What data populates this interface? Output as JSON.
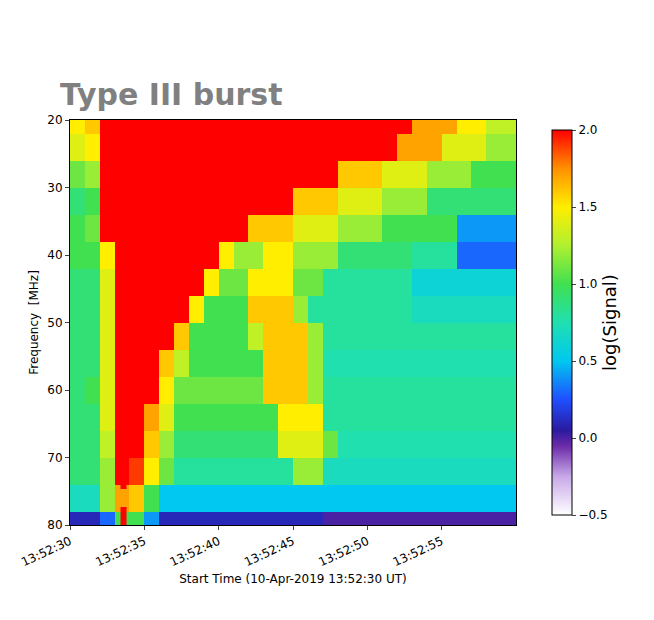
{
  "chart_data": {
    "type": "heatmap",
    "title": "Type III burst",
    "x_label": "Start Time (10-Apr-2019 13:52:30 UT)",
    "y_label": "Frequency  [MHz]",
    "x": [
      "13:52:30.5",
      "13:52:31.5",
      "13:52:32.5",
      "13:52:33.5",
      "13:52:34.5",
      "13:52:35.5",
      "13:52:36.5",
      "13:52:37.5",
      "13:52:38.5",
      "13:52:39.5",
      "13:52:40.5",
      "13:52:41.5",
      "13:52:42.5",
      "13:52:43.5",
      "13:52:44.5",
      "13:52:45.5",
      "13:52:46.5",
      "13:52:47.5",
      "13:52:48.5",
      "13:52:49.5",
      "13:52:50.5",
      "13:52:51.5",
      "13:52:52.5",
      "13:52:53.5",
      "13:52:54.5",
      "13:52:55.5",
      "13:52:56.5",
      "13:52:57.5",
      "13:52:58.5",
      "13:52:59.5"
    ],
    "y": [
      20,
      24,
      28,
      32,
      36,
      40,
      44,
      48,
      52,
      56,
      60,
      64,
      68,
      72,
      76,
      80
    ],
    "cells": [
      [
        1.5,
        1.6,
        2,
        2,
        2,
        2,
        2,
        2,
        2,
        2,
        2,
        2,
        2,
        2,
        2,
        2,
        2,
        2,
        2,
        2,
        2,
        2,
        2,
        1.7,
        1.7,
        1.7,
        1.5,
        1.5,
        1.3,
        1.3
      ],
      [
        1.4,
        1.5,
        2,
        2,
        2,
        2,
        2,
        2,
        2,
        2,
        2,
        2,
        2,
        2,
        2,
        2,
        2,
        2,
        2,
        2,
        2,
        2,
        1.7,
        1.7,
        1.7,
        1.4,
        1.4,
        1.4,
        1.2,
        1.2
      ],
      [
        1.1,
        1.2,
        2,
        2,
        2,
        2,
        2,
        2,
        2,
        2,
        2,
        2,
        2,
        2,
        2,
        2,
        2,
        2,
        1.6,
        1.6,
        1.6,
        1.4,
        1.4,
        1.4,
        1.2,
        1.2,
        1.2,
        1.0,
        1.0,
        1.0
      ],
      [
        0.9,
        1.0,
        2,
        2,
        2,
        2,
        2,
        2,
        2,
        2,
        2,
        2,
        2,
        2,
        2,
        1.6,
        1.6,
        1.6,
        1.4,
        1.4,
        1.4,
        1.2,
        1.2,
        1.2,
        0.9,
        0.9,
        0.9,
        0.9,
        0.9,
        0.9
      ],
      [
        1.0,
        1.1,
        2,
        2,
        2,
        2,
        2,
        2,
        2,
        2,
        2,
        2,
        1.6,
        1.6,
        1.6,
        1.4,
        1.4,
        1.4,
        1.2,
        1.2,
        1.2,
        1.0,
        1.0,
        1.0,
        1.0,
        1.0,
        0.4,
        0.4,
        0.4,
        0.4
      ],
      [
        1.0,
        1.0,
        1.5,
        2,
        2,
        2,
        2,
        2,
        2,
        2,
        1.5,
        1.2,
        1.2,
        1.5,
        1.5,
        1.2,
        1.2,
        1.2,
        0.9,
        0.9,
        0.9,
        0.9,
        0.9,
        0.8,
        0.8,
        0.8,
        0.3,
        0.3,
        0.3,
        0.3
      ],
      [
        0.9,
        0.9,
        1.4,
        2,
        2,
        2,
        2,
        2,
        2,
        1.5,
        1.1,
        1.1,
        1.5,
        1.5,
        1.5,
        1.1,
        1.1,
        0.8,
        0.8,
        0.8,
        0.8,
        0.8,
        0.8,
        0.6,
        0.6,
        0.6,
        0.6,
        0.6,
        0.6,
        0.6
      ],
      [
        0.9,
        0.9,
        1.4,
        2,
        2,
        2,
        2,
        2,
        1.5,
        1.0,
        1.0,
        1.0,
        1.6,
        1.6,
        1.6,
        1.2,
        0.8,
        0.8,
        0.8,
        0.8,
        0.8,
        0.8,
        0.8,
        0.7,
        0.7,
        0.7,
        0.7,
        0.7,
        0.7,
        0.7
      ],
      [
        0.9,
        0.9,
        1.4,
        2,
        2,
        2,
        2,
        1.6,
        1.0,
        1.0,
        1.0,
        1.0,
        1.3,
        1.6,
        1.6,
        1.6,
        1.2,
        0.8,
        0.8,
        0.8,
        0.8,
        0.8,
        0.8,
        0.8,
        0.8,
        0.8,
        0.8,
        0.8,
        0.8,
        0.8
      ],
      [
        0.9,
        0.9,
        1.4,
        2,
        2,
        2,
        1.6,
        1.3,
        1.0,
        1.0,
        1.0,
        1.0,
        1.0,
        1.6,
        1.6,
        1.6,
        1.2,
        0.75,
        0.75,
        0.75,
        0.75,
        0.75,
        0.75,
        0.75,
        0.75,
        0.75,
        0.75,
        0.75,
        0.75,
        0.75
      ],
      [
        0.9,
        1.0,
        1.4,
        2,
        2,
        2,
        1.5,
        1.1,
        1.1,
        1.1,
        1.1,
        1.1,
        1.1,
        1.6,
        1.6,
        1.6,
        1.2,
        0.8,
        0.8,
        0.8,
        0.8,
        0.8,
        0.8,
        0.8,
        0.8,
        0.8,
        0.8,
        0.8,
        0.8,
        0.8
      ],
      [
        0.9,
        0.9,
        1.4,
        2,
        2,
        1.7,
        1.4,
        1.0,
        1.0,
        1.0,
        1.0,
        1.0,
        1.0,
        1.0,
        1.5,
        1.5,
        1.5,
        0.8,
        0.8,
        0.8,
        0.8,
        0.8,
        0.8,
        0.8,
        0.8,
        0.8,
        0.8,
        0.8,
        0.8,
        0.8
      ],
      [
        0.9,
        0.9,
        1.3,
        2,
        2,
        1.6,
        1.2,
        0.9,
        0.9,
        0.9,
        0.9,
        0.9,
        0.9,
        0.9,
        1.4,
        1.4,
        1.4,
        1.1,
        0.75,
        0.75,
        0.75,
        0.75,
        0.75,
        0.75,
        0.75,
        0.75,
        0.75,
        0.75,
        0.75,
        0.75
      ],
      [
        0.9,
        0.9,
        1.2,
        2.0,
        1.9,
        1.5,
        1.1,
        0.8,
        0.8,
        0.8,
        0.8,
        0.8,
        0.8,
        0.8,
        0.8,
        1.2,
        1.2,
        0.7,
        0.7,
        0.7,
        0.7,
        0.7,
        0.7,
        0.7,
        0.7,
        0.7,
        0.7,
        0.7,
        0.7,
        0.7
      ],
      [
        0.7,
        0.7,
        1.2,
        1.7,
        1.6,
        1.0,
        0.5,
        0.5,
        0.5,
        0.5,
        0.5,
        0.5,
        0.5,
        0.5,
        0.5,
        0.5,
        0.5,
        0.5,
        0.5,
        0.5,
        0.5,
        0.5,
        0.5,
        0.5,
        0.5,
        0.5,
        0.5,
        0.5,
        0.5,
        0.5
      ],
      [
        0.1,
        0.1,
        0.3,
        1.0,
        1.0,
        0.4,
        0.1,
        0.1,
        0.1,
        0.1,
        0.1,
        0.1,
        0.1,
        0.1,
        0.1,
        0.1,
        0.1,
        0.0,
        0.0,
        0.0,
        0.0,
        0.0,
        0.0,
        0.0,
        0.0,
        0.0,
        0.0,
        0.0,
        0.0,
        0.0
      ]
    ],
    "xlim": [
      "13:52:30",
      "13:53:00"
    ],
    "xticks": [
      "13:52:30",
      "13:52:35",
      "13:52:40",
      "13:52:45",
      "13:52:50",
      "13:52:55"
    ],
    "ylim": [
      80,
      20
    ],
    "yticks": [
      20,
      30,
      40,
      50,
      60,
      70,
      80
    ],
    "colorbar": {
      "title": "log(Signal)",
      "range": [
        -0.5,
        2.0
      ],
      "ticks": [
        {
          "value": -0.5,
          "label": "−0.5"
        },
        {
          "value": 0,
          "label": "0.0"
        },
        0.5,
        {
          "value": 1,
          "label": "1.0"
        },
        1.5,
        {
          "value": 2,
          "label": "2.0"
        }
      ]
    },
    "marker_line": {
      "x": "13:52:33.6",
      "color": "#ff0000",
      "line_style": "dashed"
    }
  }
}
